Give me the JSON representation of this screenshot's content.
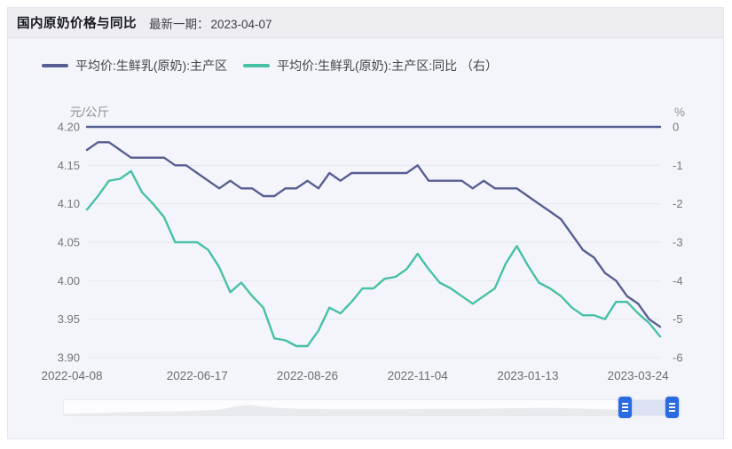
{
  "header": {
    "title": "国内原奶价格与同比",
    "latest_label": "最新一期：",
    "latest_date": "2023-04-07"
  },
  "legend": {
    "items": [
      {
        "label": "平均价:生鲜乳(原奶):主产区",
        "color": "#575e91"
      },
      {
        "label": "平均价:生鲜乳(原奶):主产区:同比 （右）",
        "color": "#47c0a8"
      }
    ]
  },
  "datazoom": {
    "handle_icon": "hamburger-lines-icon",
    "handle_color": "#2a6ae2",
    "selection_color": "#dbe2f3"
  },
  "colors": {
    "card_background": "#f4f5fa",
    "titlebar_background": "#ededf2",
    "grid_color": "#e5e7ee",
    "zero_line_color": "#565d90"
  },
  "chart_data": {
    "type": "line",
    "title": "国内原奶价格与同比",
    "grid": true,
    "legend_position": "top",
    "x": [
      "2022-04-08",
      "2022-04-15",
      "2022-04-22",
      "2022-04-29",
      "2022-05-06",
      "2022-05-13",
      "2022-05-20",
      "2022-05-27",
      "2022-06-03",
      "2022-06-10",
      "2022-06-17",
      "2022-06-24",
      "2022-07-01",
      "2022-07-08",
      "2022-07-15",
      "2022-07-22",
      "2022-07-29",
      "2022-08-05",
      "2022-08-12",
      "2022-08-19",
      "2022-08-26",
      "2022-09-02",
      "2022-09-09",
      "2022-09-16",
      "2022-09-23",
      "2022-09-30",
      "2022-10-07",
      "2022-10-14",
      "2022-10-21",
      "2022-10-28",
      "2022-11-04",
      "2022-11-11",
      "2022-11-18",
      "2022-11-25",
      "2022-12-02",
      "2022-12-09",
      "2022-12-16",
      "2022-12-23",
      "2022-12-30",
      "2023-01-06",
      "2023-01-13",
      "2023-01-20",
      "2023-01-27",
      "2023-02-03",
      "2023-02-10",
      "2023-02-17",
      "2023-02-24",
      "2023-03-03",
      "2023-03-10",
      "2023-03-17",
      "2023-03-24",
      "2023-03-31",
      "2023-04-07"
    ],
    "x_ticks": [
      {
        "i": 0,
        "label": "2022-04-08"
      },
      {
        "i": 10,
        "label": "2022-06-17"
      },
      {
        "i": 20,
        "label": "2022-08-26"
      },
      {
        "i": 30,
        "label": "2022-11-04"
      },
      {
        "i": 40,
        "label": "2023-01-13"
      },
      {
        "i": 50,
        "label": "2023-03-24"
      }
    ],
    "left_axis": {
      "name": "元/公斤",
      "min": 3.9,
      "max": 4.2,
      "ticks": [
        "4.20",
        "4.15",
        "4.10",
        "4.05",
        "4.00",
        "3.95",
        "3.90"
      ]
    },
    "right_axis": {
      "name": "%",
      "min": -6,
      "max": 0,
      "ticks": [
        "0",
        "-1",
        "-2",
        "-3",
        "-4",
        "-5",
        "-6"
      ]
    },
    "zero_line": {
      "axis": "right",
      "value": 0,
      "color": "#565d90"
    },
    "series": [
      {
        "name": "平均价:生鲜乳(原奶):主产区",
        "axis": "left",
        "unit": "元/公斤",
        "color": "#575e91",
        "values": [
          4.17,
          4.18,
          4.18,
          4.17,
          4.16,
          4.16,
          4.16,
          4.16,
          4.15,
          4.15,
          4.14,
          4.13,
          4.12,
          4.13,
          4.12,
          4.12,
          4.11,
          4.11,
          4.12,
          4.12,
          4.13,
          4.12,
          4.14,
          4.13,
          4.14,
          4.14,
          4.14,
          4.14,
          4.14,
          4.14,
          4.15,
          4.13,
          4.13,
          4.13,
          4.13,
          4.12,
          4.13,
          4.12,
          4.12,
          4.12,
          4.11,
          4.1,
          4.09,
          4.08,
          4.06,
          4.04,
          4.03,
          4.01,
          4.0,
          3.98,
          3.97,
          3.95,
          3.94
        ]
      },
      {
        "name": "平均价:生鲜乳(原奶):主产区:同比 （右）",
        "axis": "right",
        "unit": "%",
        "color": "#47c0a8",
        "values": [
          -2.15,
          -1.8,
          -1.4,
          -1.35,
          -1.15,
          -1.7,
          -2.0,
          -2.35,
          -3.0,
          -3.0,
          -3.0,
          -3.2,
          -3.65,
          -4.3,
          -4.05,
          -4.4,
          -4.7,
          -5.5,
          -5.55,
          -5.7,
          -5.7,
          -5.3,
          -4.7,
          -4.85,
          -4.55,
          -4.2,
          -4.2,
          -3.95,
          -3.9,
          -3.7,
          -3.3,
          -3.7,
          -4.05,
          -4.2,
          -4.4,
          -4.6,
          -4.4,
          -4.2,
          -3.55,
          -3.1,
          -3.6,
          -4.05,
          -4.2,
          -4.4,
          -4.7,
          -4.9,
          -4.9,
          -5.0,
          -4.55,
          -4.55,
          -4.85,
          -5.1,
          -5.45
        ]
      }
    ]
  }
}
